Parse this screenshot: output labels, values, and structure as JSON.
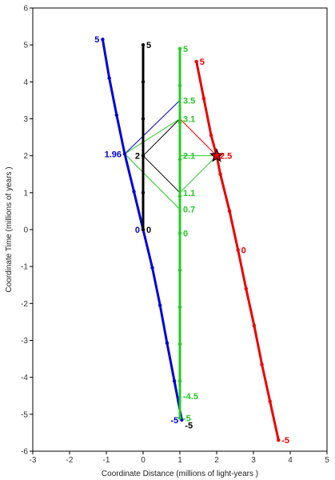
{
  "chart_data": {
    "type": "line",
    "xlabel": "Coordinate Distance (millions of light-years )",
    "ylabel": "Coordinate Time (millions of years )",
    "xlim": [
      -3,
      5
    ],
    "ylim": [
      -6,
      6
    ],
    "xticks": [
      -3,
      -2,
      -1,
      0,
      1,
      2,
      3,
      4,
      5
    ],
    "yticks": [
      -6,
      -5,
      -4,
      -3,
      -2,
      -1,
      0,
      1,
      2,
      3,
      4,
      5,
      6
    ],
    "grid": false,
    "legend": "none",
    "series": [
      {
        "color": "#0000dd",
        "points": [
          [
            -1.1,
            5.15
          ],
          [
            -0.92,
            4.1
          ],
          [
            -0.72,
            3.1
          ],
          [
            -0.5,
            2.05
          ],
          [
            -0.25,
            1.03
          ],
          [
            0,
            0
          ],
          [
            0.25,
            -1.03
          ],
          [
            0.46,
            -2.05
          ],
          [
            0.65,
            -3.07
          ],
          [
            0.85,
            -4.1
          ],
          [
            1.05,
            -5.15
          ]
        ],
        "labels": [
          {
            "text": "5",
            "x": -1.1,
            "y": 5.15,
            "side": "left"
          },
          {
            "text": "1.96",
            "x": -0.5,
            "y": 2.05,
            "side": "left"
          },
          {
            "text": "0",
            "x": 0,
            "y": 0,
            "side": "left"
          },
          {
            "text": "-5",
            "x": 1.05,
            "y": -5.15,
            "side": "left"
          }
        ]
      },
      {
        "color": "#000000",
        "points": [
          [
            0,
            5
          ],
          [
            0,
            4
          ],
          [
            0,
            3
          ],
          [
            0,
            2
          ],
          [
            0,
            1
          ],
          [
            0,
            0
          ]
        ],
        "labels": [
          {
            "text": "5",
            "x": 0,
            "y": 5,
            "side": "right"
          },
          {
            "text": "2",
            "x": 0,
            "y": 2,
            "side": "left"
          },
          {
            "text": "0",
            "x": 0,
            "y": 0,
            "side": "right"
          },
          {
            "text": "-5",
            "x": 1.05,
            "y": -5.3,
            "side": "right"
          }
        ]
      },
      {
        "color": "#22cc22",
        "points": [
          [
            1,
            4.9
          ],
          [
            1,
            3.9
          ],
          [
            1,
            2.9
          ],
          [
            1,
            1.9
          ],
          [
            1,
            0.9
          ],
          [
            1,
            -0.1
          ],
          [
            1,
            -1.1
          ],
          [
            1,
            -2.1
          ],
          [
            1,
            -3.1
          ],
          [
            1,
            -4.1
          ],
          [
            1,
            -5.1
          ]
        ],
        "labels": [
          {
            "text": "5",
            "x": 1,
            "y": 4.9,
            "side": "right"
          },
          {
            "text": "3.5",
            "x": 1,
            "y": 3.5,
            "side": "right"
          },
          {
            "text": "3.1",
            "x": 1,
            "y": 3.0,
            "side": "right"
          },
          {
            "text": "2.1",
            "x": 1,
            "y": 2.0,
            "side": "right"
          },
          {
            "text": "1.1",
            "x": 1,
            "y": 1.0,
            "side": "right"
          },
          {
            "text": "0.7",
            "x": 1,
            "y": 0.55,
            "side": "right"
          },
          {
            "text": "0",
            "x": 1,
            "y": -0.1,
            "side": "right"
          },
          {
            "text": "-4.5",
            "x": 1,
            "y": -4.5,
            "side": "right"
          },
          {
            "text": "-5",
            "x": 1,
            "y": -5.1,
            "side": "right"
          }
        ]
      },
      {
        "color": "#ee0000",
        "points": [
          [
            1.45,
            4.55
          ],
          [
            1.65,
            3.55
          ],
          [
            1.85,
            2.55
          ],
          [
            2.0,
            2.0
          ],
          [
            2.1,
            1.5
          ],
          [
            2.35,
            0.5
          ],
          [
            2.58,
            -0.55
          ],
          [
            2.8,
            -1.6
          ],
          [
            3.02,
            -2.6
          ],
          [
            3.23,
            -3.65
          ],
          [
            3.45,
            -4.65
          ],
          [
            3.68,
            -5.7
          ]
        ],
        "labels": [
          {
            "text": "5",
            "x": 1.45,
            "y": 4.55,
            "side": "right"
          },
          {
            "text": "2.5",
            "x": 2.0,
            "y": 2.0,
            "side": "right"
          },
          {
            "text": "0",
            "x": 2.58,
            "y": -0.55,
            "side": "right"
          },
          {
            "text": "-5",
            "x": 3.68,
            "y": -5.7,
            "side": "right"
          }
        ]
      }
    ],
    "light_rays": [
      {
        "color": "#0000cc",
        "from": [
          -0.5,
          2.05
        ],
        "to": [
          1,
          3.5
        ]
      },
      {
        "color": "#000000",
        "from": [
          0,
          2
        ],
        "to": [
          1,
          3.0
        ]
      },
      {
        "color": "#000000",
        "from": [
          0,
          2
        ],
        "to": [
          1,
          1.0
        ]
      },
      {
        "color": "#ee0000",
        "from": [
          1,
          3.0
        ],
        "to": [
          2.0,
          2.0
        ]
      },
      {
        "color": "#22cc22",
        "from": [
          1,
          2.0
        ],
        "to": [
          2.0,
          2.0
        ]
      },
      {
        "color": "#22cc22",
        "from": [
          1,
          3.0
        ],
        "to": [
          -0.5,
          2.05
        ]
      },
      {
        "color": "#22cc22",
        "from": [
          -0.5,
          2.05
        ],
        "to": [
          1,
          0.55
        ]
      },
      {
        "color": "#22cc22",
        "from": [
          1,
          1.0
        ],
        "to": [
          2.0,
          2.0
        ]
      }
    ],
    "event_marker": {
      "shape": "star",
      "x": 2.0,
      "y": 2.0,
      "color": "#ee0000"
    }
  }
}
